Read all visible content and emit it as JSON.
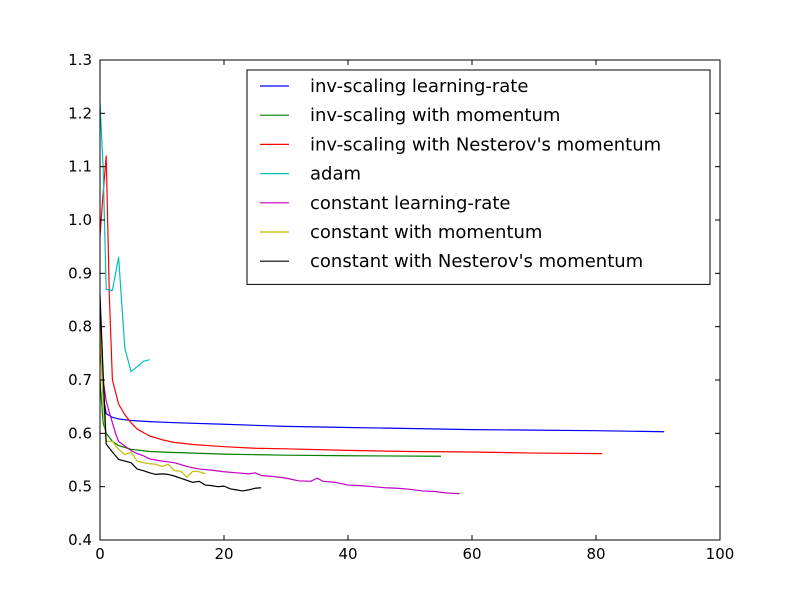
{
  "chart_data": {
    "type": "line",
    "xlim": [
      0,
      100
    ],
    "ylim": [
      0.4,
      1.3
    ],
    "x_ticks": [
      "0",
      "20",
      "40",
      "60",
      "80",
      "100"
    ],
    "y_ticks": [
      "0.4",
      "0.5",
      "0.6",
      "0.7",
      "0.8",
      "0.9",
      "1.0",
      "1.1",
      "1.2",
      "1.3"
    ],
    "x_tick_values": [
      0,
      20,
      40,
      60,
      80,
      100
    ],
    "y_tick_values": [
      0.4,
      0.5,
      0.6,
      0.7,
      0.8,
      0.9,
      1.0,
      1.1,
      1.2,
      1.3
    ],
    "grid": false,
    "legend_position": "top-right",
    "series": [
      {
        "name": "inv-scaling learning-rate",
        "color": "#0000ff",
        "x": [
          0,
          0.5,
          1,
          2,
          3,
          5,
          8,
          12,
          20,
          30,
          40,
          50,
          60,
          70,
          80,
          91
        ],
        "y": [
          0.78,
          0.67,
          0.637,
          0.63,
          0.627,
          0.624,
          0.622,
          0.62,
          0.617,
          0.613,
          0.611,
          0.609,
          0.607,
          0.606,
          0.605,
          0.603
        ]
      },
      {
        "name": "inv-scaling with momentum",
        "color": "#008000",
        "x": [
          0,
          0.5,
          1,
          2,
          3,
          5,
          8,
          12,
          20,
          30,
          40,
          55
        ],
        "y": [
          0.7,
          0.62,
          0.6,
          0.585,
          0.577,
          0.57,
          0.566,
          0.564,
          0.561,
          0.559,
          0.558,
          0.557
        ]
      },
      {
        "name": "inv-scaling with Nesterov's momentum",
        "color": "#ff0000",
        "x": [
          0,
          0.5,
          1,
          1.5,
          2,
          3,
          4,
          5,
          6,
          8,
          10,
          12,
          15,
          20,
          25,
          30,
          40,
          50,
          60,
          70,
          81
        ],
        "y": [
          0.97,
          1.05,
          1.12,
          0.86,
          0.7,
          0.655,
          0.635,
          0.62,
          0.608,
          0.595,
          0.588,
          0.583,
          0.579,
          0.575,
          0.572,
          0.571,
          0.568,
          0.566,
          0.565,
          0.563,
          0.562
        ]
      },
      {
        "name": "adam",
        "color": "#00bfbf",
        "x": [
          0,
          0.5,
          1,
          2,
          3,
          4,
          5,
          6,
          7,
          8
        ],
        "y": [
          1.22,
          1.1,
          0.87,
          0.868,
          0.93,
          0.76,
          0.716,
          0.725,
          0.735,
          0.738
        ]
      },
      {
        "name": "constant learning-rate",
        "color": "#bf00bf",
        "x": [
          0,
          0.5,
          1,
          1.5,
          2,
          2.5,
          3,
          4,
          5,
          6,
          7,
          8,
          9,
          10,
          12,
          14,
          16,
          18,
          20,
          22,
          24,
          25,
          26,
          28,
          30,
          32,
          34,
          35,
          36,
          38,
          40,
          42,
          44,
          46,
          48,
          50,
          52,
          54,
          56,
          58
        ],
        "y": [
          0.84,
          0.7,
          0.66,
          0.64,
          0.62,
          0.6,
          0.585,
          0.576,
          0.568,
          0.562,
          0.558,
          0.552,
          0.55,
          0.548,
          0.545,
          0.538,
          0.533,
          0.531,
          0.528,
          0.526,
          0.524,
          0.526,
          0.521,
          0.519,
          0.516,
          0.511,
          0.51,
          0.516,
          0.51,
          0.508,
          0.503,
          0.502,
          0.5,
          0.498,
          0.497,
          0.495,
          0.492,
          0.491,
          0.488,
          0.487
        ]
      },
      {
        "name": "constant with momentum",
        "color": "#bfbf00",
        "x": [
          0,
          0.5,
          1,
          2,
          3,
          4,
          5,
          6,
          7,
          8,
          9,
          10,
          11,
          12,
          13,
          14,
          15,
          16,
          17
        ],
        "y": [
          0.8,
          0.66,
          0.585,
          0.585,
          0.57,
          0.56,
          0.565,
          0.548,
          0.545,
          0.543,
          0.542,
          0.538,
          0.542,
          0.53,
          0.529,
          0.518,
          0.529,
          0.528,
          0.524
        ]
      },
      {
        "name": "constant with Nesterov's momentum",
        "color": "#000000",
        "x": [
          0,
          0.5,
          1,
          2,
          3,
          4,
          5,
          6,
          7,
          8,
          9,
          10,
          11,
          12,
          13,
          14,
          15,
          16,
          17,
          18,
          19,
          20,
          21,
          22,
          23,
          24,
          25,
          26
        ],
        "y": [
          0.86,
          0.715,
          0.58,
          0.565,
          0.551,
          0.548,
          0.545,
          0.533,
          0.53,
          0.526,
          0.523,
          0.524,
          0.523,
          0.52,
          0.516,
          0.512,
          0.508,
          0.51,
          0.503,
          0.502,
          0.5,
          0.501,
          0.496,
          0.494,
          0.492,
          0.494,
          0.497,
          0.498
        ]
      }
    ]
  }
}
